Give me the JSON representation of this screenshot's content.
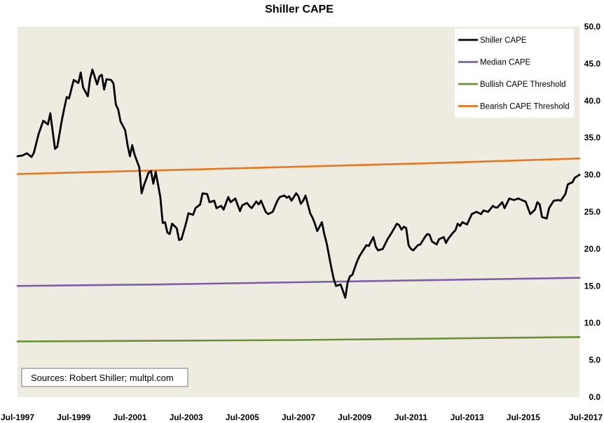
{
  "chart_data": {
    "type": "line",
    "title": "Shiller CAPE",
    "xlabel": "",
    "ylabel": "",
    "ylim": [
      0,
      50
    ],
    "y_ticks": [
      0.0,
      5.0,
      10.0,
      15.0,
      20.0,
      25.0,
      30.0,
      35.0,
      40.0,
      45.0,
      50.0
    ],
    "y_tick_format": "one-decimal",
    "y_axis_side": "right",
    "x_range": [
      "1997-07",
      "2017-07"
    ],
    "x_tick_labels": [
      "Jul-1997",
      "Jul-1999",
      "Jul-2001",
      "Jul-2003",
      "Jul-2005",
      "Jul-2007",
      "Jul-2009",
      "Jul-2011",
      "Jul-2013",
      "Jul-2015",
      "Jul-2017"
    ],
    "grid": false,
    "plot_background": "#eeebe1",
    "legend_position": "top-right",
    "annotation": "Sources: Robert Shiller; multpl.com",
    "series": [
      {
        "name": "Shiller CAPE",
        "color": "#000000",
        "points": [
          [
            "1997-07",
            32.5
          ],
          [
            "1997-09",
            32.6
          ],
          [
            "1997-11",
            32.9
          ],
          [
            "1998-01",
            32.4
          ],
          [
            "1998-02",
            33.0
          ],
          [
            "1998-04",
            35.5
          ],
          [
            "1998-06",
            37.3
          ],
          [
            "1998-08",
            36.8
          ],
          [
            "1998-09",
            38.3
          ],
          [
            "1998-11",
            33.5
          ],
          [
            "1998-12",
            33.8
          ],
          [
            "1999-02",
            37.5
          ],
          [
            "1999-03",
            39.0
          ],
          [
            "1999-04",
            40.5
          ],
          [
            "1999-05",
            40.3
          ],
          [
            "1999-07",
            42.8
          ],
          [
            "1999-09",
            42.4
          ],
          [
            "1999-10",
            43.8
          ],
          [
            "1999-11",
            41.8
          ],
          [
            "2000-01",
            40.6
          ],
          [
            "2000-02",
            43.0
          ],
          [
            "2000-03",
            44.2
          ],
          [
            "2000-05",
            42.2
          ],
          [
            "2000-06",
            43.3
          ],
          [
            "2000-07",
            43.5
          ],
          [
            "2000-08",
            41.5
          ],
          [
            "2000-09",
            42.9
          ],
          [
            "2000-11",
            42.8
          ],
          [
            "2000-12",
            42.3
          ],
          [
            "2001-01",
            39.5
          ],
          [
            "2001-02",
            38.8
          ],
          [
            "2001-03",
            37.2
          ],
          [
            "2001-05",
            36.0
          ],
          [
            "2001-06",
            34.0
          ],
          [
            "2001-07",
            32.5
          ],
          [
            "2001-08",
            34.0
          ],
          [
            "2001-09",
            32.7
          ],
          [
            "2001-11",
            31.0
          ],
          [
            "2001-12",
            27.5
          ],
          [
            "2002-01",
            28.6
          ],
          [
            "2002-03",
            30.3
          ],
          [
            "2002-04",
            30.5
          ],
          [
            "2002-05",
            28.8
          ],
          [
            "2002-06",
            30.4
          ],
          [
            "2002-08",
            27.0
          ],
          [
            "2002-09",
            23.5
          ],
          [
            "2002-10",
            23.6
          ],
          [
            "2002-11",
            22.2
          ],
          [
            "2002-12",
            22.0
          ],
          [
            "2003-01",
            23.4
          ],
          [
            "2003-03",
            22.8
          ],
          [
            "2003-04",
            21.2
          ],
          [
            "2003-05",
            21.3
          ],
          [
            "2003-07",
            23.5
          ],
          [
            "2003-08",
            24.8
          ],
          [
            "2003-10",
            24.6
          ],
          [
            "2003-11",
            25.5
          ],
          [
            "2004-01",
            26.0
          ],
          [
            "2004-02",
            27.5
          ],
          [
            "2004-04",
            27.4
          ],
          [
            "2004-05",
            26.3
          ],
          [
            "2004-07",
            26.5
          ],
          [
            "2004-08",
            25.5
          ],
          [
            "2004-10",
            25.8
          ],
          [
            "2004-11",
            25.3
          ],
          [
            "2005-01",
            27.0
          ],
          [
            "2005-02",
            26.3
          ],
          [
            "2005-04",
            26.8
          ],
          [
            "2005-06",
            25.1
          ],
          [
            "2005-07",
            25.9
          ],
          [
            "2005-09",
            26.2
          ],
          [
            "2005-10",
            25.8
          ],
          [
            "2005-11",
            25.5
          ],
          [
            "2006-01",
            26.4
          ],
          [
            "2006-02",
            26.0
          ],
          [
            "2006-03",
            26.5
          ],
          [
            "2006-05",
            25.0
          ],
          [
            "2006-06",
            24.7
          ],
          [
            "2006-08",
            25.0
          ],
          [
            "2006-10",
            26.5
          ],
          [
            "2006-11",
            27.0
          ],
          [
            "2007-01",
            27.2
          ],
          [
            "2007-02",
            26.9
          ],
          [
            "2007-03",
            27.1
          ],
          [
            "2007-04",
            26.5
          ],
          [
            "2007-06",
            27.5
          ],
          [
            "2007-07",
            27.1
          ],
          [
            "2007-08",
            26.1
          ],
          [
            "2007-09",
            26.5
          ],
          [
            "2007-10",
            27.2
          ],
          [
            "2007-12",
            24.8
          ],
          [
            "2008-01",
            24.2
          ],
          [
            "2008-02",
            23.4
          ],
          [
            "2008-03",
            22.4
          ],
          [
            "2008-05",
            23.6
          ],
          [
            "2008-06",
            22.0
          ],
          [
            "2008-07",
            20.8
          ],
          [
            "2008-09",
            17.5
          ],
          [
            "2008-10",
            16.0
          ],
          [
            "2008-11",
            15.0
          ],
          [
            "2009-01",
            15.2
          ],
          [
            "2009-02",
            14.3
          ],
          [
            "2009-03",
            13.4
          ],
          [
            "2009-04",
            15.5
          ],
          [
            "2009-05",
            16.3
          ],
          [
            "2009-06",
            16.5
          ],
          [
            "2009-08",
            18.3
          ],
          [
            "2009-09",
            19.0
          ],
          [
            "2009-10",
            19.5
          ],
          [
            "2009-12",
            20.5
          ],
          [
            "2010-01",
            20.4
          ],
          [
            "2010-03",
            21.6
          ],
          [
            "2010-04",
            20.3
          ],
          [
            "2010-05",
            19.8
          ],
          [
            "2010-07",
            20.0
          ],
          [
            "2010-09",
            21.3
          ],
          [
            "2010-11",
            22.3
          ],
          [
            "2011-01",
            23.4
          ],
          [
            "2011-02",
            23.2
          ],
          [
            "2011-03",
            22.6
          ],
          [
            "2011-04",
            23.0
          ],
          [
            "2011-05",
            22.8
          ],
          [
            "2011-06",
            20.5
          ],
          [
            "2011-07",
            20.0
          ],
          [
            "2011-08",
            19.8
          ],
          [
            "2011-10",
            20.5
          ],
          [
            "2011-11",
            20.6
          ],
          [
            "2012-01",
            21.6
          ],
          [
            "2012-02",
            22.0
          ],
          [
            "2012-03",
            21.9
          ],
          [
            "2012-04",
            21.0
          ],
          [
            "2012-06",
            20.6
          ],
          [
            "2012-07",
            21.3
          ],
          [
            "2012-09",
            21.6
          ],
          [
            "2012-10",
            20.8
          ],
          [
            "2012-11",
            21.4
          ],
          [
            "2013-01",
            22.2
          ],
          [
            "2013-02",
            22.5
          ],
          [
            "2013-03",
            23.4
          ],
          [
            "2013-04",
            23.1
          ],
          [
            "2013-05",
            23.6
          ],
          [
            "2013-07",
            23.3
          ],
          [
            "2013-09",
            24.7
          ],
          [
            "2013-11",
            25.0
          ],
          [
            "2014-01",
            24.7
          ],
          [
            "2014-02",
            25.2
          ],
          [
            "2014-04",
            25.0
          ],
          [
            "2014-06",
            25.8
          ],
          [
            "2014-07",
            25.6
          ],
          [
            "2014-08",
            25.6
          ],
          [
            "2014-10",
            26.3
          ],
          [
            "2014-11",
            25.5
          ],
          [
            "2015-01",
            26.8
          ],
          [
            "2015-03",
            26.6
          ],
          [
            "2015-05",
            26.8
          ],
          [
            "2015-07",
            26.5
          ],
          [
            "2015-08",
            26.4
          ],
          [
            "2015-10",
            24.7
          ],
          [
            "2015-12",
            25.3
          ],
          [
            "2016-01",
            26.3
          ],
          [
            "2016-02",
            26.0
          ],
          [
            "2016-03",
            24.3
          ],
          [
            "2016-05",
            24.1
          ],
          [
            "2016-06",
            25.5
          ],
          [
            "2016-08",
            26.5
          ],
          [
            "2016-10",
            26.6
          ],
          [
            "2016-11",
            26.5
          ],
          [
            "2017-01",
            27.4
          ],
          [
            "2017-02",
            28.7
          ],
          [
            "2017-04",
            29.0
          ],
          [
            "2017-05",
            29.6
          ],
          [
            "2017-07",
            30.0
          ]
        ]
      },
      {
        "name": "Median CAPE",
        "color": "#7f5ea8",
        "points": [
          [
            "1997-07",
            15.0
          ],
          [
            "2002-07",
            15.2
          ],
          [
            "2007-07",
            15.5
          ],
          [
            "2012-07",
            15.8
          ],
          [
            "2017-07",
            16.1
          ]
        ]
      },
      {
        "name": "Bullish CAPE Threshold",
        "color": "#6d9038",
        "points": [
          [
            "1997-07",
            7.5
          ],
          [
            "2002-07",
            7.6
          ],
          [
            "2007-07",
            7.7
          ],
          [
            "2012-07",
            7.9
          ],
          [
            "2017-07",
            8.1
          ]
        ]
      },
      {
        "name": "Bearish CAPE Threshold",
        "color": "#e8761b",
        "points": [
          [
            "1997-07",
            30.1
          ],
          [
            "2002-07",
            30.6
          ],
          [
            "2007-07",
            31.1
          ],
          [
            "2012-07",
            31.6
          ],
          [
            "2017-07",
            32.2
          ]
        ]
      }
    ]
  }
}
